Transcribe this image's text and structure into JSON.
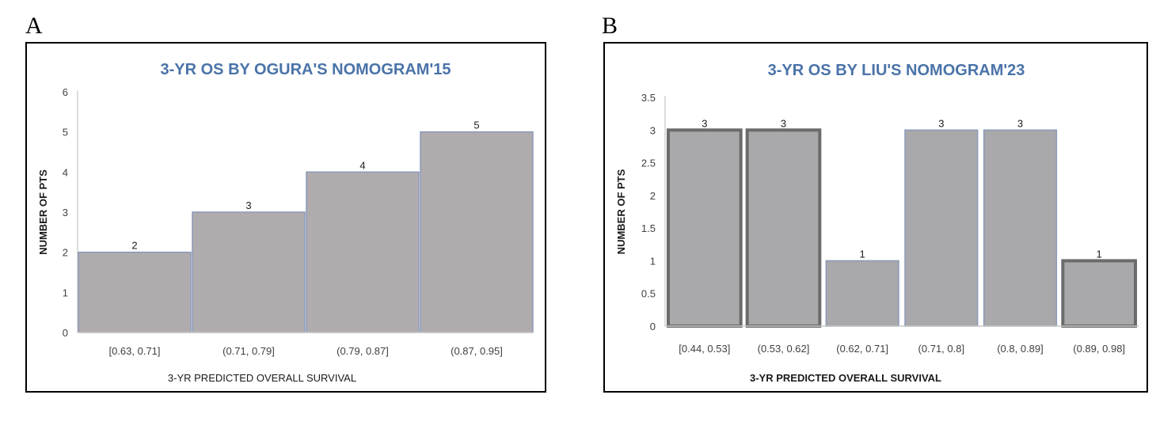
{
  "panels": [
    {
      "letter": "A"
    },
    {
      "letter": "B"
    }
  ],
  "chart_data": [
    {
      "type": "bar",
      "title": "3-YR OS BY OGURA'S NOMOGRAM'15",
      "xlabel": "3-YR  PREDICTED OVERALL SURVIVAL",
      "ylabel": "NUMBER OF PTS",
      "categories": [
        "[0.63, 0.71]",
        "(0.71, 0.79]",
        "(0.79, 0.87]",
        "(0.87, 0.95]"
      ],
      "values": [
        2,
        3,
        4,
        5
      ],
      "data_labels": [
        "2",
        "3",
        "4",
        "5"
      ],
      "ylim": [
        0,
        6
      ],
      "yticks": [
        "0",
        "1",
        "2",
        "3",
        "4",
        "5",
        "6"
      ],
      "ytick_values": [
        0,
        1,
        2,
        3,
        4,
        5,
        6
      ],
      "grid": false,
      "legend": "none",
      "bar_color": "#b0acae",
      "bar_edge_color": "#8a9ab8",
      "title_color": "#4a73a8"
    },
    {
      "type": "bar",
      "title": "3-YR OS BY LIU'S NOMOGRAM'23",
      "xlabel": "3-YR  PREDICTED OVERALL SURVIVAL",
      "ylabel": "NUMBER OF PTS",
      "categories": [
        "[0.44, 0.53]",
        "(0.53, 0.62]",
        "(0.62, 0.71]",
        "(0.71, 0.8]",
        "(0.8, 0.89]",
        "(0.89, 0.98]"
      ],
      "values": [
        3,
        3,
        1,
        3,
        3,
        1
      ],
      "data_labels": [
        "3",
        "3",
        "1",
        "3",
        "3",
        "1"
      ],
      "ylim": [
        0,
        3.5
      ],
      "yticks": [
        "0",
        "0.5",
        "1",
        "1.5",
        "2",
        "2.5",
        "3",
        "3.5"
      ],
      "ytick_values": [
        0,
        0.5,
        1,
        1.5,
        2,
        2.5,
        3,
        3.5
      ],
      "grid": false,
      "legend": "none",
      "bar_color": "#a9a8aa",
      "bar_edge_color": "#8a9ab8",
      "title_color": "#4a73a8"
    }
  ]
}
